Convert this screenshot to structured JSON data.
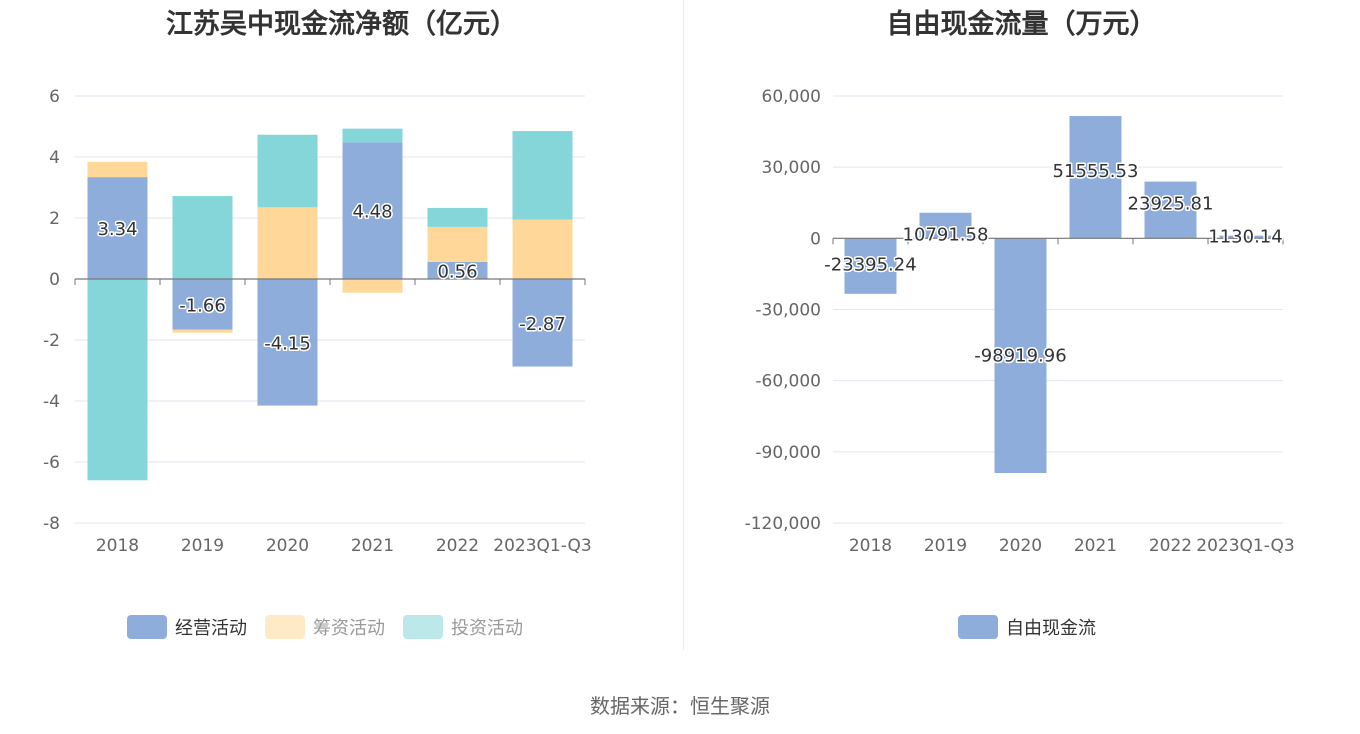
{
  "source_text": "数据来源：恒生聚源",
  "chart_data": [
    {
      "type": "bar",
      "stacked": true,
      "title": "江苏吴中现金流净额（亿元）",
      "categories": [
        "2018",
        "2019",
        "2020",
        "2021",
        "2022",
        "2023Q1-Q3"
      ],
      "ylim": [
        -8,
        6
      ],
      "yticks": [
        "6",
        "4",
        "2",
        "0",
        "-2",
        "-4",
        "-6",
        "-8"
      ],
      "ytick_values": [
        6,
        4,
        2,
        0,
        -2,
        -4,
        -6,
        -8
      ],
      "legend_position": "bottom",
      "series": [
        {
          "name": "经营活动",
          "color": "#8eadda",
          "values": [
            3.34,
            -1.66,
            -4.15,
            4.48,
            0.56,
            -2.87
          ],
          "labels": [
            "3.34",
            "-1.66",
            "-4.15",
            "4.48",
            "0.56",
            "-2.87"
          ],
          "dim": false
        },
        {
          "name": "筹资活动",
          "color": "#ffd899",
          "values": [
            0.5,
            -0.1,
            2.35,
            -0.45,
            1.15,
            1.95
          ],
          "dim": true
        },
        {
          "name": "投资活动",
          "color": "#85d6d9",
          "values": [
            -6.6,
            2.72,
            2.38,
            0.45,
            0.62,
            2.9
          ],
          "dim": true
        }
      ]
    },
    {
      "type": "bar",
      "title": "自由现金流量（万元）",
      "categories": [
        "2018",
        "2019",
        "2020",
        "2021",
        "2022",
        "2023Q1-Q3"
      ],
      "ylim": [
        -120000,
        60000
      ],
      "yticks": [
        "60,000",
        "30,000",
        "0",
        "-30,000",
        "-60,000",
        "-90,000",
        "-120,000"
      ],
      "ytick_values": [
        60000,
        30000,
        0,
        -30000,
        -60000,
        -90000,
        -120000
      ],
      "legend_position": "bottom",
      "series": [
        {
          "name": "自由现金流",
          "color": "#8eadda",
          "values": [
            -23395.24,
            10791.58,
            -98919.96,
            51555.53,
            23925.81,
            1130.14
          ],
          "labels": [
            "-23395.24",
            "10791.58",
            "-98919.96",
            "51555.53",
            "23925.81",
            "1130.14"
          ]
        }
      ]
    }
  ]
}
